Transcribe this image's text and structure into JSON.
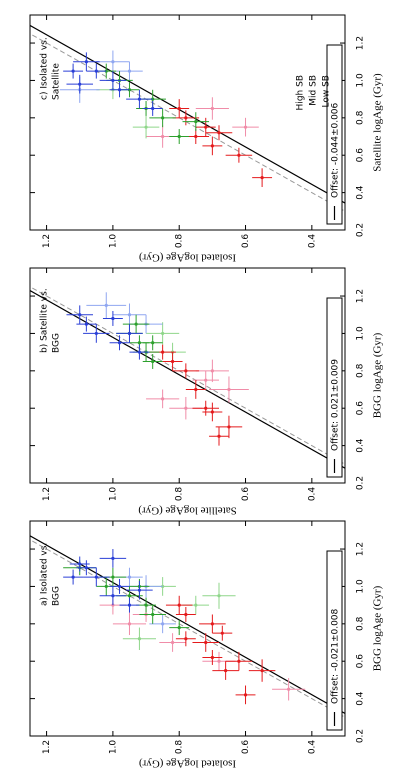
{
  "chart_data": [
    {
      "type": "scatter",
      "annotation": [
        "a) Isolated vs.",
        "BGG"
      ],
      "xlabel": "BGG logAge (Gyr)",
      "ylabel": "Isolated logAge (Gyr)",
      "offset": -0.021,
      "offset_err": 0.008,
      "offset_label": "Offset: -0.021±0.008",
      "xlim": [
        0.2,
        1.35
      ],
      "ylim": [
        0.3,
        1.25
      ],
      "xticks": [
        0.2,
        0.4,
        0.6,
        0.8,
        {
          "value": 1,
          "label": "1.0"
        },
        1.2
      ],
      "yticks": [
        0.4,
        0.6,
        0.8,
        {
          "value": 1,
          "label": "1.0"
        },
        1.2
      ],
      "series": [
        {
          "color": "#f08ca8",
          "x": [
            0.45,
            0.7,
            0.8,
            0.85,
            0.6,
            0.9
          ],
          "values": [
            0.47,
            0.82,
            0.95,
            0.9,
            0.68,
            1.0
          ],
          "xerr": [
            0.06,
            0.05,
            0.06,
            0.04,
            0.05,
            0.05
          ],
          "yerr": [
            0.05,
            0.04,
            0.05,
            0.04,
            0.05,
            0.04
          ]
        },
        {
          "color": "#8fd68a",
          "x": [
            0.95,
            0.9,
            1.0,
            0.72
          ],
          "values": [
            0.68,
            0.75,
            0.85,
            0.92
          ],
          "xerr": [
            0.07,
            0.05,
            0.05,
            0.06
          ],
          "yerr": [
            0.05,
            0.04,
            0.04,
            0.05
          ]
        },
        {
          "color": "#8fa6f0",
          "x": [
            0.8,
            1.0,
            1.05
          ],
          "values": [
            0.85,
            0.9,
            0.95
          ],
          "xerr": [
            0.05,
            0.06,
            0.05
          ],
          "yerr": [
            0.04,
            0.05,
            0.04
          ]
        },
        {
          "color": "#e41a1c",
          "x": [
            0.42,
            0.55,
            0.6,
            0.62,
            0.7,
            0.75,
            0.8,
            0.85,
            0.9,
            0.72,
            0.55
          ],
          "values": [
            0.6,
            0.55,
            0.62,
            0.7,
            0.72,
            0.67,
            0.7,
            0.78,
            0.8,
            0.78,
            0.66
          ],
          "xerr": [
            0.05,
            0.06,
            0.05,
            0.04,
            0.05,
            0.04,
            0.05,
            0.04,
            0.05,
            0.04,
            0.05
          ],
          "yerr": [
            0.03,
            0.04,
            0.04,
            0.03,
            0.04,
            0.03,
            0.04,
            0.03,
            0.04,
            0.03,
            0.04
          ]
        },
        {
          "color": "#2ca02c",
          "x": [
            0.78,
            0.85,
            0.9,
            0.95,
            1.0,
            1.05,
            1.1,
            1.0
          ],
          "values": [
            0.8,
            0.88,
            0.9,
            0.95,
            0.92,
            1.0,
            1.1,
            1.02
          ],
          "xerr": [
            0.04,
            0.05,
            0.04,
            0.05,
            0.04,
            0.05,
            0.04,
            0.05
          ],
          "yerr": [
            0.03,
            0.04,
            0.03,
            0.04,
            0.03,
            0.04,
            0.05,
            0.03
          ]
        },
        {
          "color": "#2a3fd6",
          "x": [
            0.9,
            0.95,
            1.0,
            1.05,
            1.1,
            1.15,
            1.05,
            0.98,
            1.12
          ],
          "values": [
            0.95,
            1.0,
            0.98,
            1.05,
            1.08,
            1.0,
            1.12,
            0.92,
            1.1
          ],
          "xerr": [
            0.04,
            0.05,
            0.04,
            0.05,
            0.04,
            0.05,
            0.04,
            0.05,
            0.04
          ],
          "yerr": [
            0.03,
            0.04,
            0.03,
            0.04,
            0.03,
            0.04,
            0.03,
            0.04,
            0.03
          ]
        }
      ]
    },
    {
      "type": "scatter",
      "annotation": [
        "b) Satellite vs.",
        "BGG"
      ],
      "xlabel": "BGG logAge (Gyr)",
      "ylabel": "Satellite logAge (Gyr)",
      "offset": 0.021,
      "offset_err": 0.009,
      "offset_label": "Offset: 0.021±0.009",
      "xlim": [
        0.2,
        1.35
      ],
      "ylim": [
        0.3,
        1.25
      ],
      "xticks": [
        0.2,
        0.4,
        0.6,
        0.8,
        {
          "value": 1,
          "label": "1.0"
        },
        1.2
      ],
      "yticks": [
        0.4,
        0.6,
        0.8,
        {
          "value": 1,
          "label": "1.0"
        },
        1.2
      ],
      "series": [
        {
          "color": "#f08ca8",
          "x": [
            0.6,
            0.7,
            0.75,
            0.8,
            0.65
          ],
          "values": [
            0.78,
            0.65,
            0.72,
            0.7,
            0.85
          ],
          "xerr": [
            0.06,
            0.07,
            0.05,
            0.06,
            0.05
          ],
          "yerr": [
            0.05,
            0.06,
            0.04,
            0.05,
            0.05
          ]
        },
        {
          "color": "#8fd68a",
          "x": [
            0.9,
            1.0
          ],
          "values": [
            0.82,
            0.85
          ],
          "xerr": [
            0.05,
            0.06
          ],
          "yerr": [
            0.04,
            0.05
          ]
        },
        {
          "color": "#8fa6f0",
          "x": [
            1.1,
            1.15,
            1.05
          ],
          "values": [
            0.95,
            1.02,
            0.9
          ],
          "xerr": [
            0.06,
            0.07,
            0.05
          ],
          "yerr": [
            0.05,
            0.06,
            0.05
          ]
        },
        {
          "color": "#e41a1c",
          "x": [
            0.45,
            0.5,
            0.58,
            0.6,
            0.7,
            0.8,
            0.85,
            0.9
          ],
          "values": [
            0.68,
            0.65,
            0.7,
            0.72,
            0.75,
            0.78,
            0.82,
            0.85
          ],
          "xerr": [
            0.05,
            0.06,
            0.05,
            0.04,
            0.05,
            0.04,
            0.05,
            0.04
          ],
          "yerr": [
            0.03,
            0.04,
            0.03,
            0.04,
            0.03,
            0.04,
            0.03,
            0.04
          ]
        },
        {
          "color": "#2ca02c",
          "x": [
            0.85,
            0.9,
            0.95,
            1.0,
            0.95,
            1.05
          ],
          "values": [
            0.88,
            0.9,
            0.92,
            0.95,
            0.88,
            0.93
          ],
          "xerr": [
            0.04,
            0.05,
            0.04,
            0.05,
            0.04,
            0.05
          ],
          "yerr": [
            0.03,
            0.04,
            0.03,
            0.04,
            0.03,
            0.04
          ]
        },
        {
          "color": "#2a3fd6",
          "x": [
            0.95,
            1.0,
            1.05,
            1.1,
            0.9,
            1.0,
            1.08
          ],
          "values": [
            0.98,
            1.05,
            1.08,
            1.1,
            0.92,
            0.95,
            1.0
          ],
          "xerr": [
            0.04,
            0.05,
            0.04,
            0.05,
            0.04,
            0.05,
            0.04
          ],
          "yerr": [
            0.03,
            0.04,
            0.03,
            0.04,
            0.03,
            0.04,
            0.03
          ]
        }
      ]
    },
    {
      "type": "scatter",
      "annotation": [
        "c) Isolated vs.",
        "Satellite"
      ],
      "xlabel": "Satellite logAge (Gyr)",
      "ylabel": "Isolated logAge (Gyr)",
      "offset": -0.044,
      "offset_err": 0.006,
      "offset_label": "Offset: -0.044±0.006",
      "xlim": [
        0.2,
        1.35
      ],
      "ylim": [
        0.3,
        1.25
      ],
      "xticks": [
        0.2,
        0.4,
        0.6,
        0.8,
        {
          "value": 1,
          "label": "1.0"
        },
        1.2
      ],
      "yticks": [
        0.4,
        0.6,
        0.8,
        {
          "value": 1,
          "label": "1.0"
        },
        1.2
      ],
      "series": [
        {
          "color": "#f08ca8",
          "x": [
            0.7,
            0.75,
            0.85
          ],
          "values": [
            0.85,
            0.6,
            0.7
          ],
          "xerr": [
            0.06,
            0.05,
            0.06
          ],
          "yerr": [
            0.05,
            0.04,
            0.05
          ]
        },
        {
          "color": "#8fd68a",
          "x": [
            0.95,
            0.75
          ],
          "values": [
            1.0,
            0.9
          ],
          "xerr": [
            0.05,
            0.06
          ],
          "yerr": [
            0.05,
            0.04
          ]
        },
        {
          "color": "#8fa6f0",
          "x": [
            1.1,
            0.95,
            1.05
          ],
          "values": [
            1.0,
            1.1,
            0.95
          ],
          "xerr": [
            0.06,
            0.07,
            0.05
          ],
          "yerr": [
            0.05,
            0.06,
            0.04
          ]
        },
        {
          "name": "High SB",
          "color": "#e41a1c",
          "x": [
            0.48,
            0.6,
            0.65,
            0.7,
            0.75,
            0.8,
            0.85,
            0.72
          ],
          "values": [
            0.55,
            0.62,
            0.7,
            0.75,
            0.72,
            0.78,
            0.8,
            0.68
          ],
          "xerr": [
            0.05,
            0.04,
            0.05,
            0.04,
            0.05,
            0.04,
            0.05,
            0.04
          ],
          "yerr": [
            0.03,
            0.04,
            0.03,
            0.04,
            0.03,
            0.04,
            0.03,
            0.04
          ]
        },
        {
          "name": "Mid SB",
          "color": "#2ca02c",
          "x": [
            0.7,
            0.8,
            0.85,
            0.9,
            0.95,
            1.0,
            1.05,
            0.78
          ],
          "values": [
            0.8,
            0.85,
            0.9,
            0.88,
            0.95,
            0.98,
            1.02,
            0.75
          ],
          "xerr": [
            0.04,
            0.05,
            0.04,
            0.05,
            0.04,
            0.05,
            0.04,
            0.05
          ],
          "yerr": [
            0.03,
            0.04,
            0.03,
            0.04,
            0.03,
            0.04,
            0.03,
            0.04
          ]
        },
        {
          "name": "Low SB",
          "color": "#2a3fd6",
          "x": [
            0.85,
            0.9,
            0.95,
            1.0,
            1.05,
            1.1,
            1.05,
            0.98
          ],
          "values": [
            0.88,
            0.92,
            0.98,
            1.0,
            1.05,
            1.08,
            1.12,
            1.1
          ],
          "xerr": [
            0.04,
            0.05,
            0.04,
            0.05,
            0.04,
            0.05,
            0.04,
            0.05
          ],
          "yerr": [
            0.03,
            0.04,
            0.03,
            0.04,
            0.03,
            0.04,
            0.03,
            0.04
          ]
        }
      ]
    }
  ]
}
